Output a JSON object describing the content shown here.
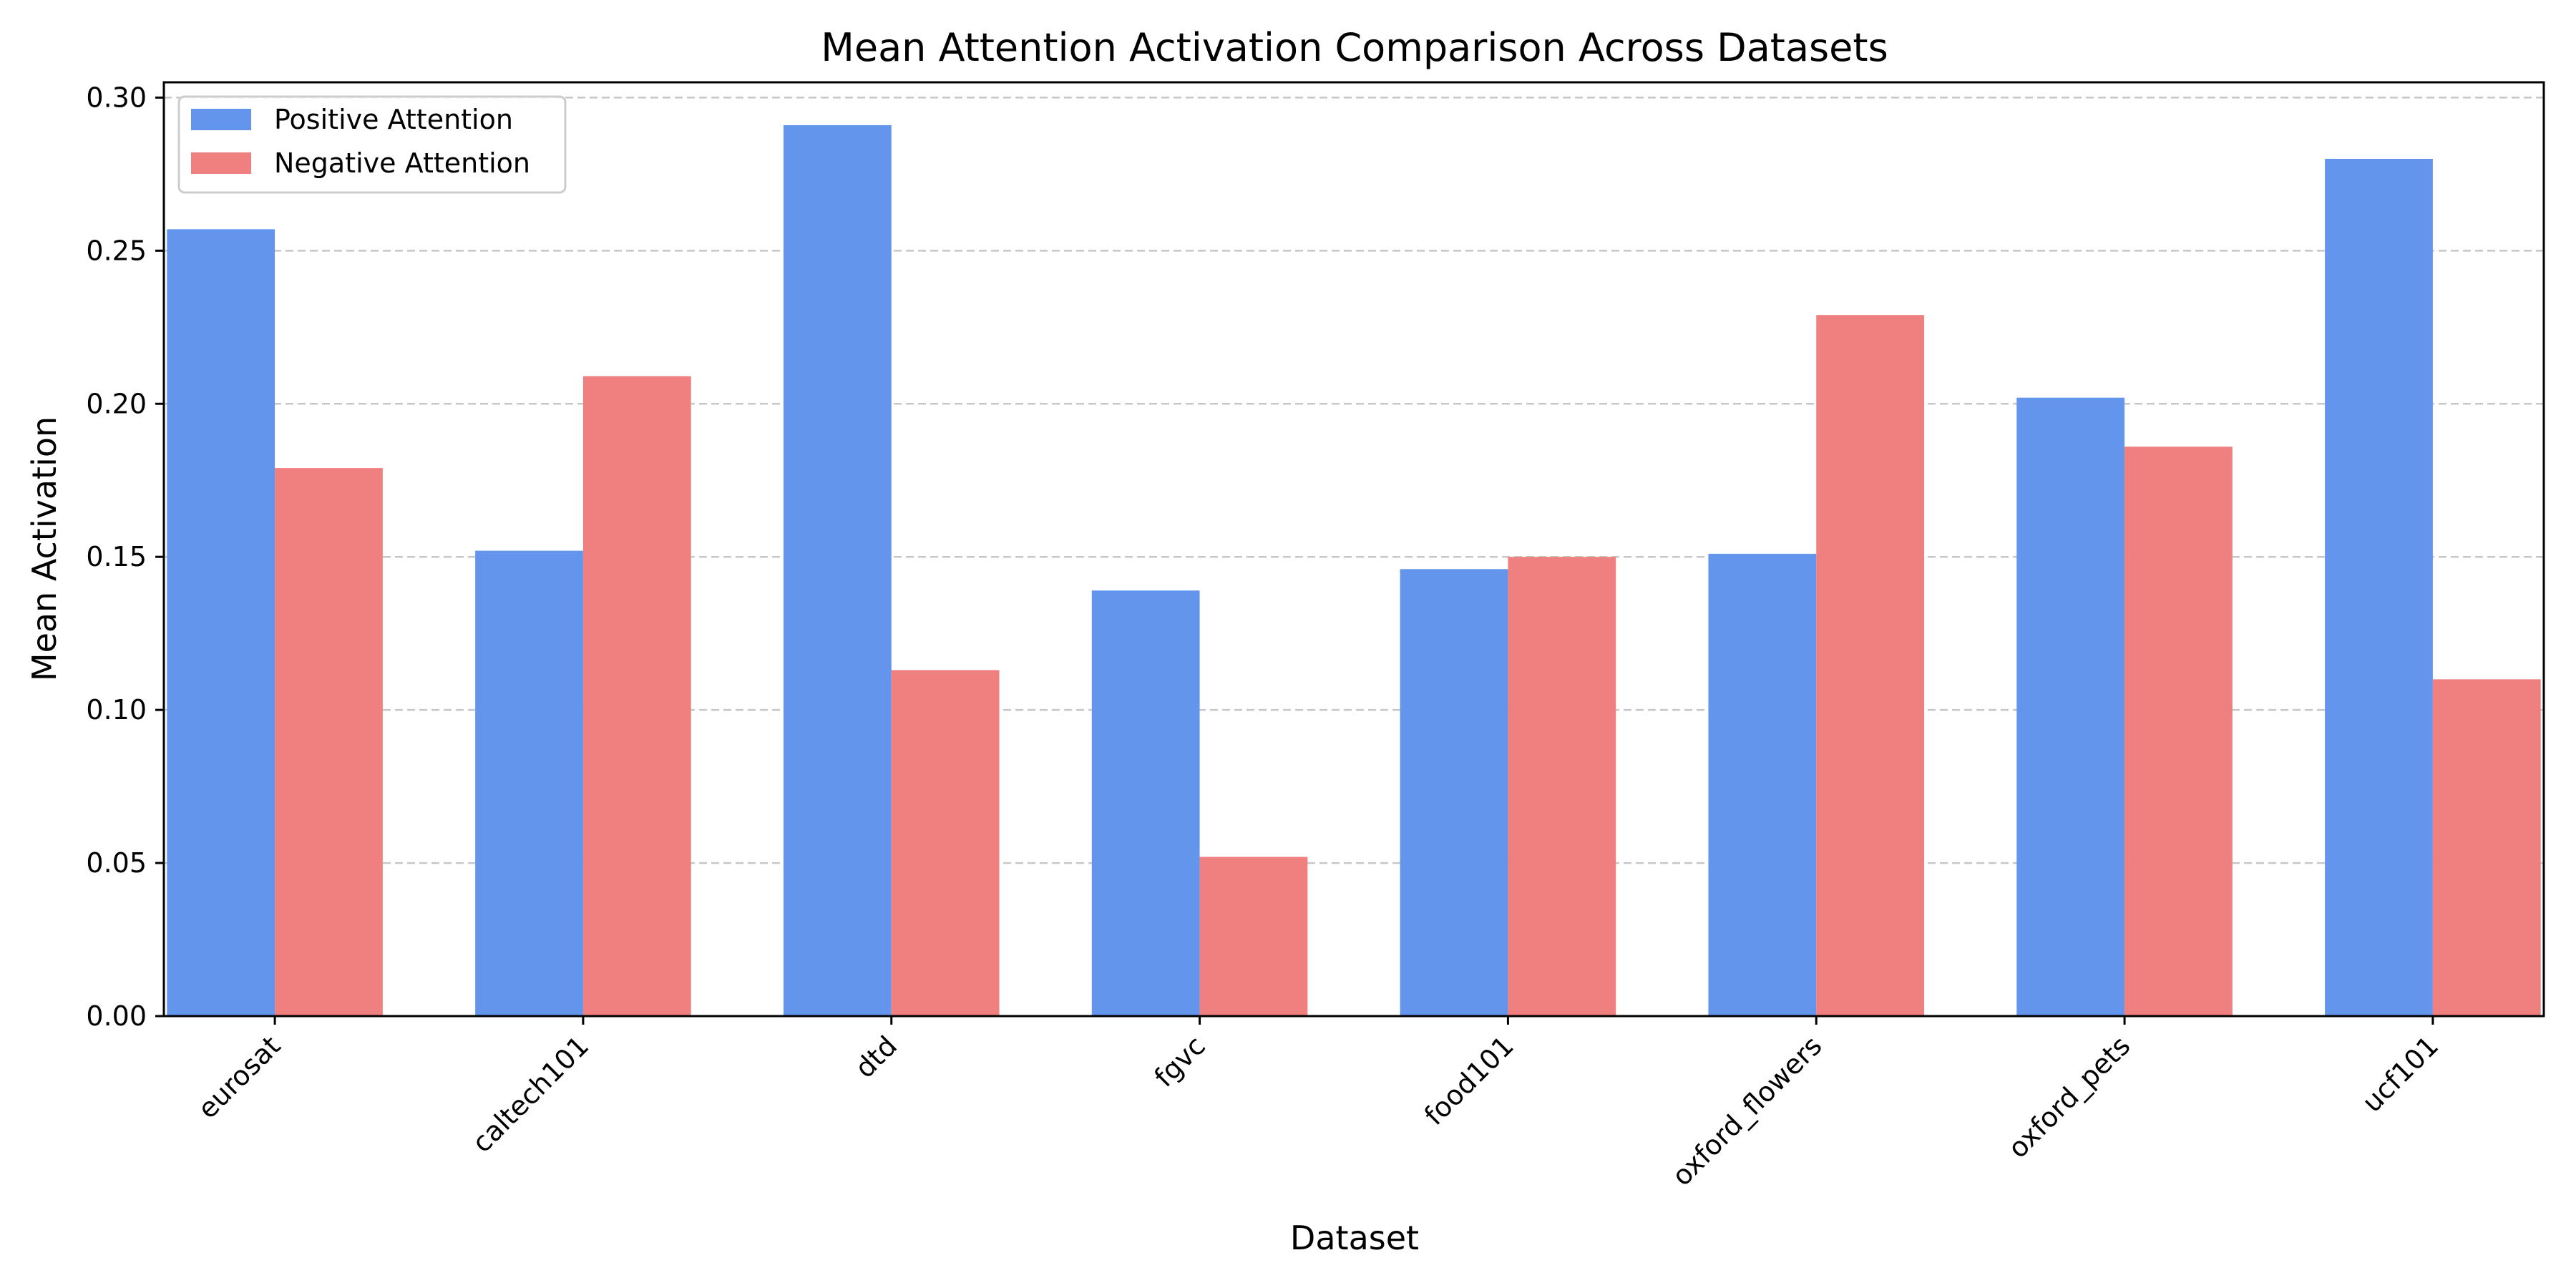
{
  "chart_data": {
    "type": "bar",
    "title": "Mean Attention Activation Comparison Across Datasets",
    "xlabel": "Dataset",
    "ylabel": "Mean Activation",
    "categories": [
      "eurosat",
      "caltech101",
      "dtd",
      "fgvc",
      "food101",
      "oxford_flowers",
      "oxford_pets",
      "ucf101"
    ],
    "series": [
      {
        "name": "Positive Attention",
        "color": "#6495ED",
        "values": [
          0.257,
          0.152,
          0.291,
          0.139,
          0.146,
          0.151,
          0.202,
          0.28
        ]
      },
      {
        "name": "Negative Attention",
        "color": "#F08080",
        "values": [
          0.179,
          0.209,
          0.113,
          0.052,
          0.15,
          0.229,
          0.186,
          0.11
        ]
      }
    ],
    "ylim": [
      0,
      0.305
    ],
    "yticks": [
      "0.00",
      "0.05",
      "0.10",
      "0.15",
      "0.20",
      "0.25",
      "0.30"
    ],
    "grid": "y-dashed",
    "legend_position": "top-left"
  }
}
